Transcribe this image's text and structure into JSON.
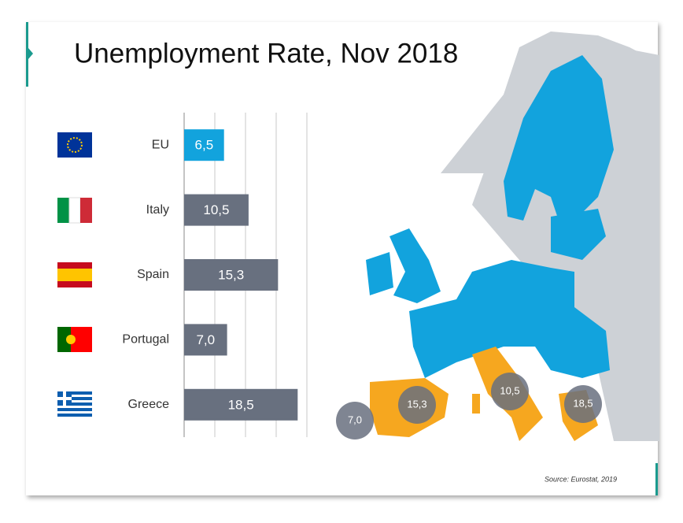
{
  "chart_data": {
    "type": "bar",
    "orientation": "horizontal",
    "title": "Unemployment Rate, Nov 2018",
    "categories": [
      "EU",
      "Italy",
      "Spain",
      "Portugal",
      "Greece"
    ],
    "values": [
      6.5,
      10.5,
      15.3,
      7.0,
      18.5
    ],
    "value_labels": [
      "6,5",
      "10,5",
      "15,3",
      "7,0",
      "18,5"
    ],
    "colors": [
      "#12a3dd",
      "#68707f",
      "#68707f",
      "#68707f",
      "#68707f"
    ],
    "xlim": [
      0,
      20
    ],
    "xticks": [
      0,
      5,
      10,
      15,
      20
    ],
    "grid": true,
    "source": "Source: Eurostat, 2019"
  }
}
